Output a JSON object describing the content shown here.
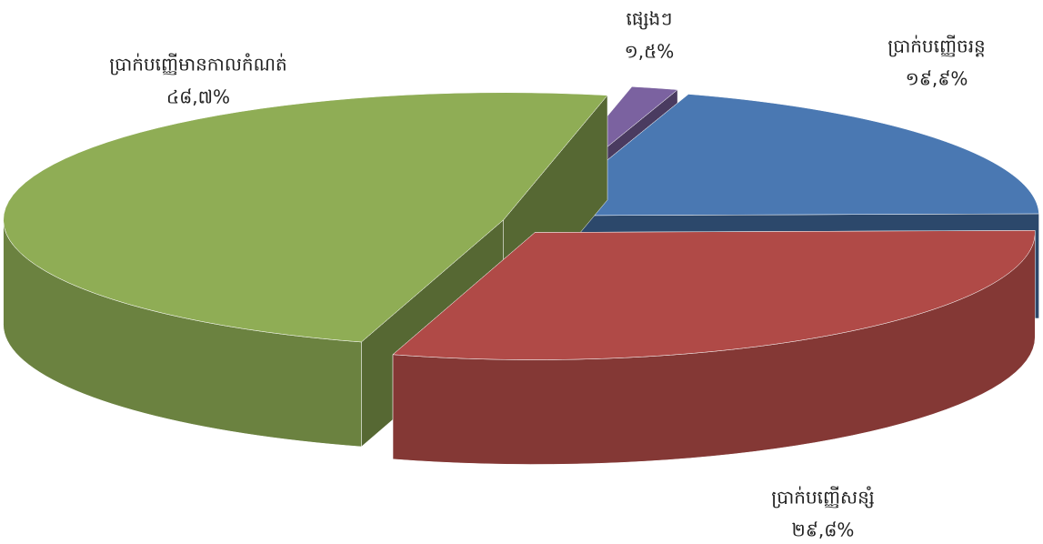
{
  "chart_data": {
    "type": "pie3d",
    "categories": [
      "ផ្សេងៗ",
      "ប្រាក់បញ្ញើចរន្ត",
      "ប្រាក់បញ្ញើសន្សំ",
      "ប្រាក់បញ្ញើមានកាលកំណត់"
    ],
    "values": [
      1.5,
      19.9,
      29.8,
      48.7
    ],
    "value_labels": [
      "១,៥%",
      "១៩,៩%",
      "២៩,៨%",
      "៤៨,៧%"
    ],
    "colors": [
      "#7b62a0",
      "#4a78b2",
      "#b04a47",
      "#8fad55"
    ]
  }
}
